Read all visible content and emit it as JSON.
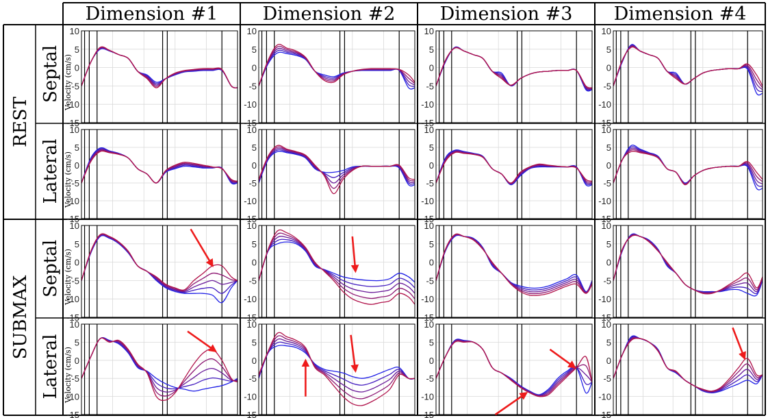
{
  "figure": {
    "columns": [
      "Dimension #1",
      "Dimension #2",
      "Dimension #3",
      "Dimension #4"
    ],
    "groups": [
      "REST",
      "SUBMAX"
    ],
    "walls": [
      "Septal",
      "Lateral"
    ],
    "ylabel": "Velocity (cm/s)",
    "colors": {
      "blue": "#1f1fe6",
      "red": "#b0124a",
      "arrow": "#ee1b1b",
      "grid": "#d9d9d9"
    }
  },
  "chart_data": {
    "type": "line",
    "layout": "4x4 grid of line plots (rows: REST-Septal, REST-Lateral, SUBMAX-Septal, SUBMAX-Lateral; columns: Dimension #1..#4)",
    "ylim": [
      -15,
      10
    ],
    "yticks": [
      -15,
      -10,
      -5,
      0,
      5,
      10
    ],
    "xlim": [
      0,
      100
    ],
    "grid": true,
    "series_note": "each panel shows 5 curves interpolated from blue to red",
    "x": [
      0,
      6,
      12,
      18,
      24,
      30,
      36,
      42,
      48,
      54,
      60,
      66,
      72,
      78,
      84,
      90,
      96,
      100
    ],
    "panels": [
      {
        "row": "REST",
        "wall": "Septal",
        "column": "Dimension #1",
        "blue": [
          -5,
          1.5,
          5,
          4.5,
          3.5,
          2.5,
          -1,
          -2,
          -4,
          -3,
          -2,
          -1.2,
          -1,
          -0.8,
          -0.8,
          -0.8,
          -5,
          -5.5
        ],
        "red": [
          -5,
          1.5,
          5.5,
          4.7,
          3.5,
          2.5,
          -1,
          -3,
          -5.5,
          -3,
          -1.5,
          -0.8,
          -0.5,
          -0.3,
          -0.3,
          -0.5,
          -5,
          -5.5
        ]
      },
      {
        "row": "REST",
        "wall": "Septal",
        "column": "Dimension #2",
        "blue": [
          -5,
          1,
          4,
          3.8,
          3.3,
          2.2,
          -1,
          -2,
          -2.5,
          -1.5,
          -1,
          -0.8,
          -0.8,
          -0.8,
          -0.8,
          -0.8,
          -5.5,
          -5.5
        ],
        "red": [
          -5,
          2,
          6.2,
          5.3,
          4.5,
          2.8,
          -1,
          -3.5,
          -4,
          -2,
          -1,
          -0.5,
          -0.3,
          -0.3,
          -0.3,
          -0.5,
          -2,
          -4
        ]
      },
      {
        "row": "REST",
        "wall": "Septal",
        "column": "Dimension #3",
        "blue": [
          -5,
          1.5,
          5.5,
          4.5,
          3.5,
          2.5,
          -1,
          -1.5,
          -5,
          -3,
          -1.8,
          -1.2,
          -1,
          -0.8,
          -0.8,
          -0.8,
          -6,
          -6
        ],
        "red": [
          -5,
          2,
          5.3,
          4.5,
          3.5,
          2.5,
          -1,
          -3,
          -4.8,
          -3,
          -1.8,
          -1.2,
          -1,
          -0.8,
          -0.8,
          -0.8,
          -5,
          -5.5
        ]
      },
      {
        "row": "REST",
        "wall": "Septal",
        "column": "Dimension #4",
        "blue": [
          -5,
          1.5,
          6.2,
          4.5,
          3.5,
          2.5,
          -1,
          -1.5,
          -4.5,
          -3,
          -1.5,
          -0.8,
          -0.5,
          -0.3,
          -0.3,
          -0.5,
          -7,
          -7
        ],
        "red": [
          -5,
          2,
          5.5,
          4.5,
          3.5,
          2.5,
          -1,
          -3,
          -4.5,
          -3,
          -1.5,
          -0.8,
          -0.5,
          -0.3,
          -0.3,
          1,
          -2,
          -5
        ]
      },
      {
        "row": "REST",
        "wall": "Lateral",
        "column": "Dimension #1",
        "blue": [
          -5,
          2,
          4.8,
          4,
          3.3,
          2,
          -1,
          -2.5,
          -5,
          -2,
          -1,
          -0.3,
          -0.5,
          -0.8,
          -0.8,
          -0.8,
          -5,
          -5
        ],
        "red": [
          -5,
          1,
          3.8,
          3.5,
          3,
          2,
          -1,
          -2.5,
          -5,
          -1.5,
          0,
          0.8,
          0.5,
          0,
          -0.5,
          -1,
          -4,
          -4.5
        ]
      },
      {
        "row": "REST",
        "wall": "Lateral",
        "column": "Dimension #2",
        "blue": [
          -5,
          1.5,
          3.8,
          3.5,
          3,
          2,
          -1,
          -2,
          -2,
          -1.5,
          -0.5,
          -0.3,
          -0.3,
          -0.3,
          -0.3,
          -0.8,
          -5.5,
          -5.5
        ],
        "red": [
          -4,
          2.5,
          5.5,
          4.5,
          3.8,
          2.8,
          0,
          -3,
          -8,
          -4,
          -1.5,
          -0.3,
          -0.3,
          -0.3,
          -0.3,
          0,
          -3.5,
          -4
        ]
      },
      {
        "row": "REST",
        "wall": "Lateral",
        "column": "Dimension #3",
        "blue": [
          -5,
          2,
          4.2,
          3.8,
          3.3,
          2.5,
          -1,
          -2.5,
          -5.5,
          -3,
          -1,
          -0.5,
          -0.5,
          -0.5,
          -0.5,
          -0.5,
          -5.5,
          -5.5
        ],
        "red": [
          -5,
          1,
          3.5,
          3.3,
          3,
          2.2,
          -1,
          -2.5,
          -5,
          -2,
          -0.5,
          0.3,
          0,
          -0.3,
          -0.5,
          -0.8,
          -4,
          -4.5
        ]
      },
      {
        "row": "REST",
        "wall": "Lateral",
        "column": "Dimension #4",
        "blue": [
          -5,
          1.5,
          5.5,
          4.5,
          3.5,
          2.5,
          -1,
          -2,
          -5,
          -3,
          -1.5,
          -0.8,
          -0.5,
          -0.3,
          -0.3,
          -0.5,
          -6.5,
          -6.5
        ],
        "red": [
          -5,
          1.5,
          3.8,
          3.5,
          3,
          2,
          -1,
          -2,
          -5.5,
          -3,
          -1.5,
          -0.8,
          -0.5,
          -0.3,
          -0.3,
          1,
          -2,
          -4
        ]
      },
      {
        "row": "SUBMAX",
        "wall": "Septal",
        "column": "Dimension #1",
        "blue": [
          -5,
          2.5,
          7,
          6.5,
          5,
          2.5,
          -1,
          -2.5,
          -5,
          -7,
          -8,
          -8.5,
          -8.5,
          -8.5,
          -9,
          -11,
          -7,
          -5
        ],
        "red": [
          -5,
          3,
          7.5,
          7,
          5.5,
          3,
          -1,
          -2.5,
          -4,
          -6,
          -7,
          -7.5,
          -5,
          -3,
          -1,
          -1,
          -4,
          -5
        ]
      },
      {
        "row": "SUBMAX",
        "wall": "Septal",
        "column": "Dimension #2",
        "blue": [
          -5,
          3,
          5,
          5.5,
          5,
          3,
          -1,
          -2,
          -3,
          -4,
          -4.5,
          -4.8,
          -5,
          -5,
          -4.5,
          -3,
          -4,
          -5.5
        ],
        "red": [
          -5,
          3.5,
          8.5,
          8,
          6.5,
          4,
          0,
          -2.5,
          -5,
          -8,
          -10,
          -11,
          -11.5,
          -11,
          -10.5,
          -8.5,
          -9.5,
          -11.5
        ]
      },
      {
        "row": "SUBMAX",
        "wall": "Septal",
        "column": "Dimension #3",
        "blue": [
          -5,
          3,
          7,
          7,
          6.5,
          4,
          -1,
          -3,
          -5.5,
          -6.5,
          -7,
          -7,
          -6.5,
          -5.5,
          -4.5,
          -3.5,
          -8,
          -5
        ],
        "red": [
          -5,
          3.5,
          7.5,
          7,
          6,
          3.5,
          0,
          -3,
          -6,
          -8,
          -9,
          -9,
          -8.5,
          -7.5,
          -6.5,
          -6,
          -8.5,
          -6
        ]
      },
      {
        "row": "SUBMAX",
        "wall": "Septal",
        "column": "Dimension #4",
        "blue": [
          -5,
          3,
          7.5,
          7,
          6,
          3.5,
          -1,
          -3,
          -6,
          -7.5,
          -8,
          -8,
          -8,
          -7.5,
          -7.5,
          -8.5,
          -9,
          -5
        ],
        "red": [
          -5,
          3.5,
          7,
          7,
          5.5,
          3,
          0,
          -3,
          -6,
          -7.5,
          -8.5,
          -8.5,
          -7.5,
          -6,
          -4.5,
          -3,
          -7,
          -4
        ]
      },
      {
        "row": "SUBMAX",
        "wall": "Lateral",
        "column": "Dimension #1",
        "blue": [
          -5,
          1,
          6,
          5.5,
          4.5,
          2,
          -2,
          -3,
          -5,
          -6.5,
          -7.5,
          -8,
          -8.5,
          -8,
          -7.5,
          -7,
          -6,
          -5
        ],
        "red": [
          -5,
          1,
          6,
          5,
          5.5,
          3,
          -1,
          -3.5,
          -10,
          -11,
          -9,
          -5,
          -1,
          2,
          3,
          0,
          -5,
          -6
        ]
      },
      {
        "row": "SUBMAX",
        "wall": "Lateral",
        "column": "Dimension #2",
        "blue": [
          -5,
          2,
          4,
          4,
          3.5,
          2,
          -1,
          -2.5,
          -3,
          -3.5,
          -4.5,
          -5,
          -4.5,
          -3.5,
          -2.5,
          -2,
          -5,
          -5
        ],
        "red": [
          -4,
          2.5,
          7.5,
          6.5,
          5.5,
          3.5,
          -2,
          -4,
          -7,
          -10,
          -12,
          -12.5,
          -11.5,
          -10,
          -8,
          -4,
          -5,
          -5
        ]
      },
      {
        "row": "SUBMAX",
        "wall": "Lateral",
        "column": "Dimension #3",
        "blue": [
          -5,
          1,
          5.5,
          5.5,
          5,
          3,
          -2,
          -3.5,
          -5,
          -7,
          -8.5,
          -9.5,
          -8,
          -5,
          -3,
          -2,
          -9,
          -6
        ],
        "red": [
          -5,
          1,
          5,
          5,
          5,
          3,
          -2,
          -3.5,
          -5.5,
          -7.5,
          -9,
          -10,
          -9.5,
          -7,
          -4.5,
          -2,
          1,
          -6
        ]
      },
      {
        "row": "SUBMAX",
        "wall": "Lateral",
        "column": "Dimension #4",
        "blue": [
          -5,
          1.5,
          6.5,
          6,
          5,
          3,
          -2,
          -3.5,
          -5.5,
          -7,
          -8.5,
          -9,
          -8.5,
          -7.5,
          -6.5,
          -5.5,
          -6.5,
          -4
        ],
        "red": [
          -5,
          1.5,
          5.5,
          6,
          5,
          2.5,
          -2,
          -3,
          -5.5,
          -7,
          -8,
          -8.5,
          -7.5,
          -5,
          -2,
          0.5,
          -4,
          -4
        ]
      }
    ],
    "event_lines_x": [
      2,
      5,
      10,
      52,
      55,
      90
    ],
    "arrows": [
      {
        "row": "SUBMAX",
        "wall": "Septal",
        "column": "Dimension #1",
        "points_to": [
          84,
          -1
        ],
        "from": [
          70,
          9
        ]
      },
      {
        "row": "SUBMAX",
        "wall": "Septal",
        "column": "Dimension #2",
        "points_to": [
          62,
          -2.5
        ],
        "from": [
          60,
          7
        ]
      },
      {
        "row": "SUBMAX",
        "wall": "Lateral",
        "column": "Dimension #1",
        "points_to": [
          86,
          2.5
        ],
        "from": [
          68,
          8
        ]
      },
      {
        "row": "SUBMAX",
        "wall": "Lateral",
        "column": "Dimension #2",
        "points_to": [
          62,
          -3
        ],
        "from": [
          59,
          7
        ]
      },
      {
        "row": "SUBMAX",
        "wall": "Lateral",
        "column": "Dimension #2",
        "points_to": [
          30,
          0
        ],
        "from": [
          30,
          -10
        ]
      },
      {
        "row": "SUBMAX",
        "wall": "Lateral",
        "column": "Dimension #3",
        "points_to": [
          89,
          -2
        ],
        "from": [
          73,
          3
        ]
      },
      {
        "row": "SUBMAX",
        "wall": "Lateral",
        "column": "Dimension #3",
        "points_to": [
          58,
          -9
        ],
        "from": [
          38,
          -15
        ]
      },
      {
        "row": "SUBMAX",
        "wall": "Lateral",
        "column": "Dimension #4",
        "points_to": [
          88,
          0.5
        ],
        "from": [
          80,
          9
        ]
      }
    ]
  }
}
